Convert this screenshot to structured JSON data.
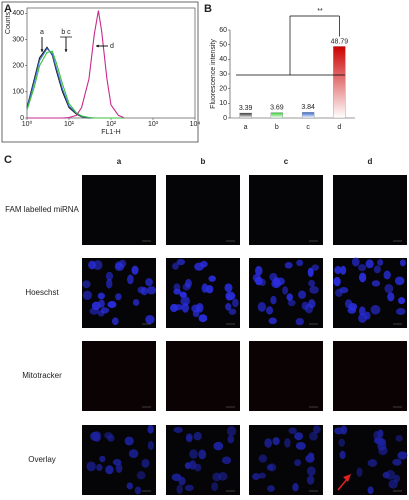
{
  "panel_labels": [
    "A",
    "B",
    "C"
  ],
  "chart_data": [
    {
      "type": "line",
      "xlabel": "FL1-H",
      "ylabel": "Counts",
      "log_x": true,
      "x": [
        1,
        1.5,
        2,
        3,
        4,
        5,
        7,
        10,
        15,
        20,
        30,
        40,
        50,
        60,
        80,
        100,
        150,
        200
      ],
      "xlim": [
        1,
        10000
      ],
      "xticks": [
        {
          "value": 1,
          "label": "10⁰"
        },
        {
          "value": 10,
          "label": "10¹"
        },
        {
          "value": 100,
          "label": "10²"
        },
        {
          "value": 1000,
          "label": "10³"
        },
        {
          "value": 10000,
          "label": "10⁴"
        }
      ],
      "ylim": [
        0,
        420
      ],
      "yticks": [
        0,
        100,
        200,
        300,
        400
      ],
      "series": [
        {
          "color": "#111111",
          "values": [
            40,
            150,
            230,
            270,
            240,
            180,
            100,
            40,
            15,
            5,
            0,
            0,
            0,
            0,
            0,
            0,
            0,
            0
          ]
        },
        {
          "color": "#3a6fd0",
          "values": [
            35,
            140,
            220,
            265,
            245,
            190,
            110,
            45,
            18,
            6,
            1,
            0,
            0,
            0,
            0,
            0,
            0,
            0
          ]
        },
        {
          "color": "#3bbf3b",
          "values": [
            30,
            120,
            200,
            250,
            255,
            210,
            130,
            55,
            20,
            8,
            2,
            0,
            0,
            0,
            0,
            0,
            0,
            0
          ]
        },
        {
          "color": "#c8288c",
          "values": [
            0,
            0,
            0,
            0,
            0,
            0,
            0,
            2,
            10,
            40,
            150,
            320,
            410,
            330,
            150,
            50,
            10,
            2
          ]
        }
      ],
      "annotations": [
        "a",
        "b c",
        "d"
      ]
    },
    {
      "type": "bar",
      "ylabel": "Fluorescence intensity",
      "categories": [
        "a",
        "b",
        "c",
        "d"
      ],
      "values": [
        3.39,
        3.69,
        3.84,
        48.79
      ],
      "colors": [
        "#333333",
        "#33cc33",
        "#3366cc",
        "#cc0000"
      ],
      "ylim": [
        0,
        60
      ],
      "yticks": [
        0,
        10,
        20,
        30,
        40,
        50,
        60
      ],
      "significance": "**"
    }
  ],
  "microscopy": {
    "columns": [
      "a",
      "b",
      "c",
      "d"
    ],
    "rows": [
      "FAM labelled miRNA",
      "Hoeschst",
      "Mitotracker",
      "Overlay"
    ]
  }
}
